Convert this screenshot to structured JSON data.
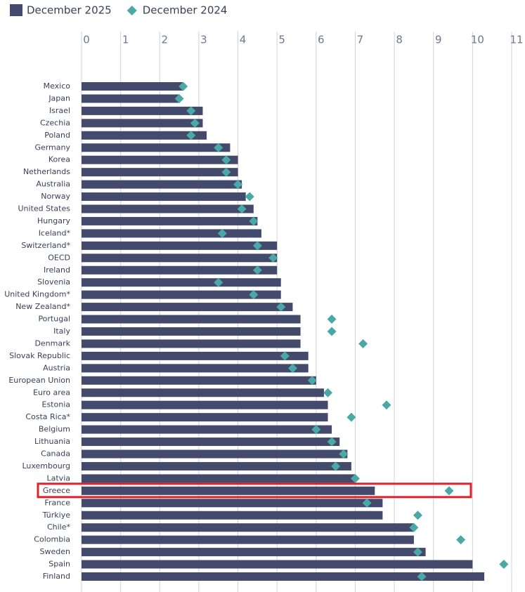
{
  "chart_data": {
    "type": "bar",
    "orientation": "horizontal",
    "categories": [
      "Mexico",
      "Japan",
      "Israel",
      "Czechia",
      "Poland",
      "Germany",
      "Korea",
      "Netherlands",
      "Australia",
      "Norway",
      "United States",
      "Hungary",
      "Iceland*",
      "Switzerland*",
      "OECD",
      "Ireland",
      "Slovenia",
      "United Kingdom*",
      "New Zealand*",
      "Portugal",
      "Italy",
      "Denmark",
      "Slovak Republic",
      "Austria",
      "European Union",
      "Euro area",
      "Estonia",
      "Costa Rica*",
      "Belgium",
      "Lithuania",
      "Canada",
      "Luxembourg",
      "Latvia",
      "Greece",
      "France",
      "Türkiye",
      "Chile*",
      "Colombia",
      "Sweden",
      "Spain",
      "Finland"
    ],
    "series": [
      {
        "name": "December 2025",
        "type": "bar",
        "color": "#434a6b",
        "values": [
          2.6,
          2.5,
          3.1,
          3.1,
          3.2,
          3.8,
          4.0,
          4.0,
          4.1,
          4.2,
          4.4,
          4.5,
          4.6,
          5.0,
          5.0,
          5.0,
          5.1,
          5.1,
          5.4,
          5.6,
          5.6,
          5.6,
          5.8,
          5.8,
          6.0,
          6.2,
          6.3,
          6.3,
          6.4,
          6.6,
          6.8,
          6.9,
          7.0,
          7.5,
          7.7,
          7.7,
          8.5,
          8.5,
          8.8,
          10.0,
          10.3
        ]
      },
      {
        "name": "December 2024",
        "type": "diamond",
        "color": "#4aa9a4",
        "values": [
          2.6,
          2.5,
          2.8,
          2.9,
          2.8,
          3.5,
          3.7,
          3.7,
          4.0,
          4.3,
          4.1,
          4.4,
          3.6,
          4.5,
          4.9,
          4.5,
          3.5,
          4.4,
          5.1,
          6.4,
          6.4,
          7.2,
          5.2,
          5.4,
          5.9,
          6.3,
          7.8,
          6.9,
          6.0,
          6.4,
          6.7,
          6.5,
          7.0,
          9.4,
          7.3,
          8.6,
          8.5,
          9.7,
          8.6,
          10.8,
          8.7
        ]
      }
    ],
    "xlim": [
      0,
      11
    ],
    "xticks": [
      0,
      1,
      2,
      3,
      4,
      5,
      6,
      7,
      8,
      9,
      10,
      11
    ],
    "grid": true,
    "highlight": "Greece",
    "highlight_color": "#d9232d"
  }
}
